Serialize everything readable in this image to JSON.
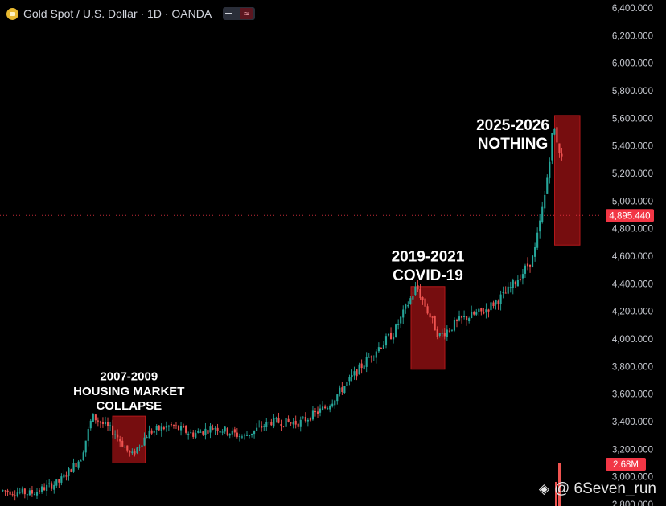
{
  "header": {
    "icon": "gold-coin-icon",
    "title": "Gold Spot / U.S. Dollar · 1D · OANDA",
    "toggle_icon": "indicator-toggle-icon"
  },
  "watermark": {
    "icon": "binance-square-icon",
    "text": "@ 6Seven_run"
  },
  "colors": {
    "up": "#26a69a",
    "down": "#ef5350",
    "box_fill": "#8b0f12",
    "box_border": "#b3181a",
    "price_tag": "#f23645",
    "grid_line": "#3a1418"
  },
  "chart_data": {
    "type": "candlestick",
    "title": "Gold Spot / U.S. Dollar · 1D · OANDA",
    "y_axis": {
      "ticks": [
        "6,400.000",
        "6,200.000",
        "6,000.000",
        "5,800.000",
        "5,600.000",
        "5,400.000",
        "5,200.000",
        "5,000.000",
        "4,800.000",
        "4,600.000",
        "4,400.000",
        "4,200.000",
        "4,000.000",
        "3,800.000",
        "3,600.000",
        "3,400.000",
        "3,200.000",
        "3,000.000",
        "2,800.000"
      ],
      "range": [
        2800,
        6400
      ],
      "position": "right"
    },
    "current_price": {
      "value": 4895.44,
      "label": "4,895.440"
    },
    "volume_label": "2.68M",
    "trend": [
      [
        0,
        2900
      ],
      [
        0.05,
        2880
      ],
      [
        0.1,
        2960
      ],
      [
        0.14,
        3140
      ],
      [
        0.16,
        3440
      ],
      [
        0.2,
        3320
      ],
      [
        0.23,
        3150
      ],
      [
        0.26,
        3320
      ],
      [
        0.3,
        3370
      ],
      [
        0.34,
        3310
      ],
      [
        0.38,
        3360
      ],
      [
        0.43,
        3290
      ],
      [
        0.48,
        3400
      ],
      [
        0.53,
        3390
      ],
      [
        0.58,
        3510
      ],
      [
        0.62,
        3700
      ],
      [
        0.66,
        3890
      ],
      [
        0.7,
        4050
      ],
      [
        0.74,
        4380
      ],
      [
        0.78,
        4020
      ],
      [
        0.82,
        4140
      ],
      [
        0.86,
        4200
      ],
      [
        0.9,
        4330
      ],
      [
        0.93,
        4480
      ],
      [
        0.95,
        4600
      ],
      [
        0.97,
        5050
      ],
      [
        0.985,
        5550
      ],
      [
        1.0,
        5300
      ]
    ],
    "annotations": [
      {
        "label_lines": [
          "2007-2009",
          "HOUSING MARKET",
          "COLLAPSE"
        ],
        "x_range": [
          0.2,
          0.258
        ],
        "y_range": [
          3100,
          3440
        ]
      },
      {
        "label_lines": [
          "2019-2021",
          "COVID-19"
        ],
        "x_range": [
          0.73,
          0.79
        ],
        "y_range": [
          3780,
          4380
        ]
      },
      {
        "label_lines": [
          "2025-2026",
          "NOTHING"
        ],
        "x_range": [
          0.985,
          1.03
        ],
        "y_range": [
          4680,
          5620
        ]
      }
    ]
  }
}
